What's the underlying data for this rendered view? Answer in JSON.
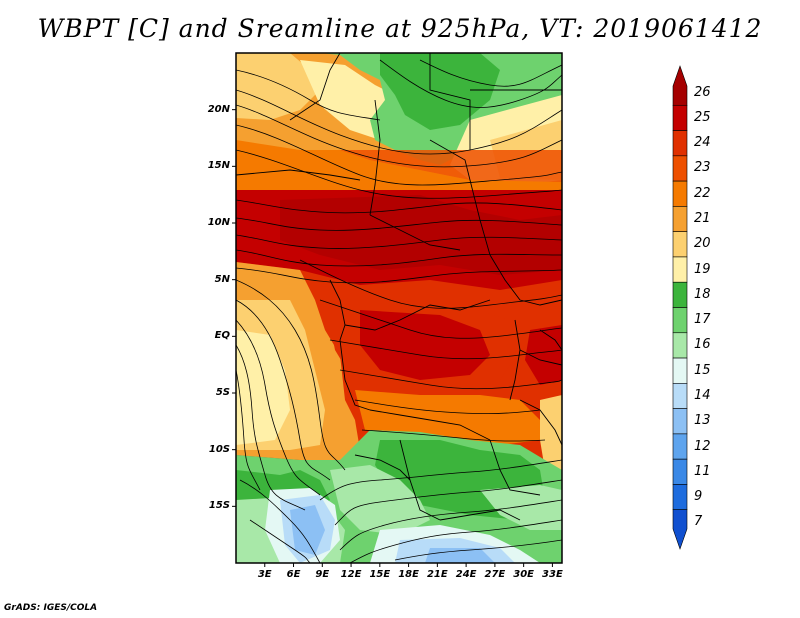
{
  "title": "WBPT [C] and Sreamline at 925hPa, VT: 2019061412",
  "credit": "GrADS: IGES/COLA",
  "map": {
    "lat_labels": [
      "20N",
      "15N",
      "10N",
      "5N",
      "EQ",
      "5S",
      "10S",
      "15S"
    ],
    "lat_values": [
      20,
      15,
      10,
      5,
      0,
      -5,
      -10,
      -15
    ],
    "lon_labels": [
      "3E",
      "6E",
      "9E",
      "12E",
      "15E",
      "18E",
      "21E",
      "24E",
      "27E",
      "30E",
      "33E"
    ],
    "lon_values": [
      3,
      6,
      9,
      12,
      15,
      18,
      21,
      24,
      27,
      30,
      33
    ],
    "lon_range": [
      0,
      34
    ],
    "lat_range": [
      -20,
      25
    ]
  },
  "colorbar": {
    "labels": [
      "26",
      "25",
      "24",
      "23",
      "22",
      "21",
      "20",
      "19",
      "18",
      "17",
      "16",
      "15",
      "14",
      "13",
      "12",
      "11",
      "9",
      "7"
    ],
    "colors": [
      "#a50000",
      "#c40000",
      "#e03000",
      "#ee5000",
      "#f57a00",
      "#f5a030",
      "#fcd070",
      "#fff0a8",
      "#3cb43c",
      "#6ed26e",
      "#a8e8a8",
      "#e4f8f4",
      "#b8dcf8",
      "#8cc0f4",
      "#5ea4ee",
      "#3a88e6",
      "#1e6cde",
      "#1050d0"
    ]
  }
}
